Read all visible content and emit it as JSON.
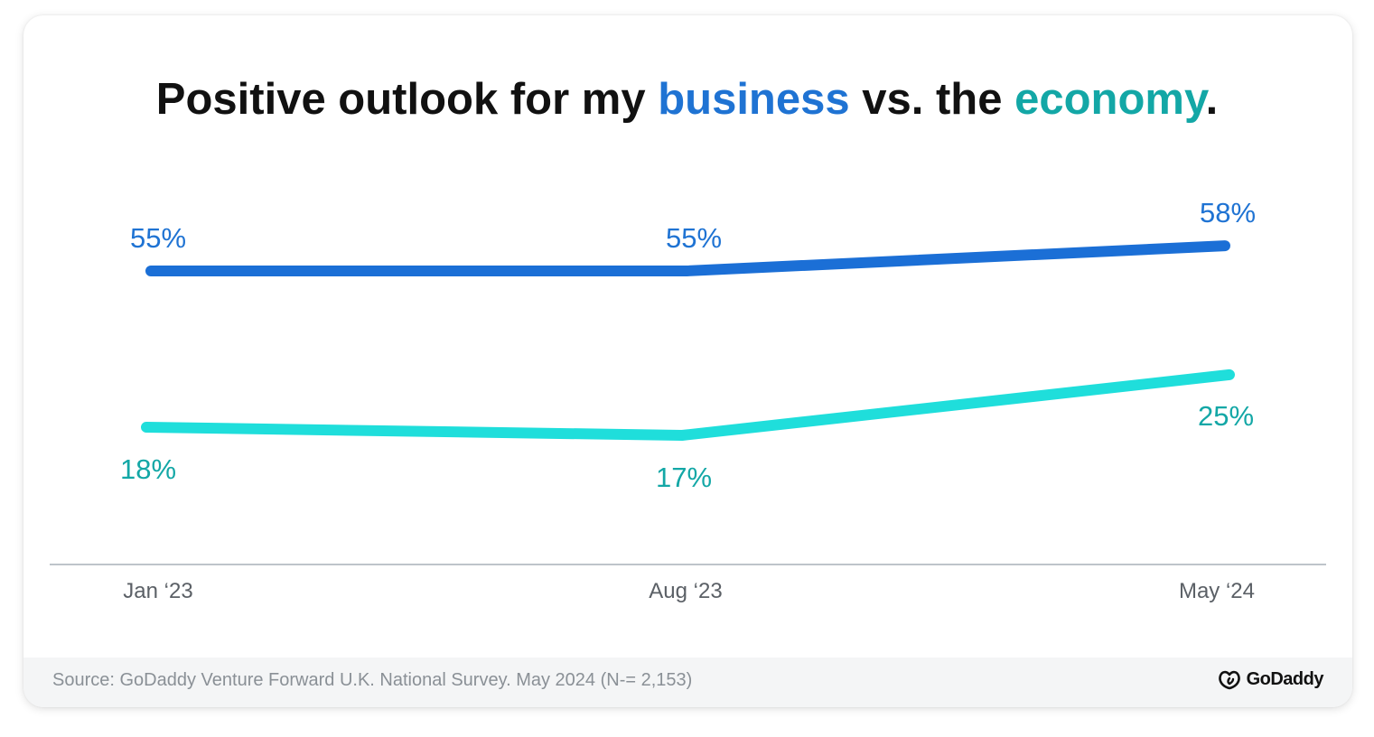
{
  "title": {
    "part1": "Positive outlook for my ",
    "business": "business",
    "part2": " vs. the ",
    "economy": "economy",
    "part3": "."
  },
  "colors": {
    "business_text": "#1f73d3",
    "business_line": "#1b6fd6",
    "economy_text": "#13a7a6",
    "economy_line": "#1fdedb",
    "axis": "#a9b1b8",
    "tick_text": "#5b6066"
  },
  "chart_data": {
    "type": "line",
    "categories": [
      "Jan ‘23",
      "Aug ‘23",
      "May ‘24"
    ],
    "series": [
      {
        "name": "business",
        "values": [
          55,
          55,
          58
        ],
        "labels": [
          "55%",
          "55%",
          "58%"
        ]
      },
      {
        "name": "economy",
        "values": [
          18,
          17,
          25
        ],
        "labels": [
          "18%",
          "17%",
          "25%"
        ]
      }
    ],
    "title": "Positive outlook for my business vs. the economy.",
    "xlabel": "",
    "ylabel": "",
    "grid": false
  },
  "footer": {
    "source": "Source: GoDaddy Venture Forward U.K. National Survey. May 2024 (N-= 2,153)",
    "logo_text": "GoDaddy",
    "logo_icon": "godaddy-logo-icon"
  }
}
